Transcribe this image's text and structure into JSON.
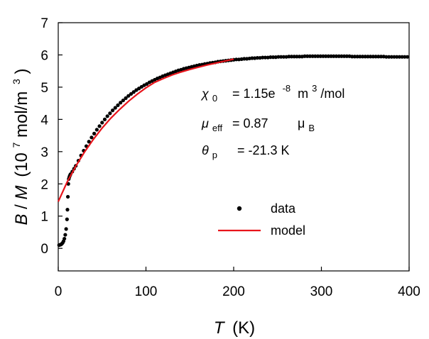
{
  "chart_data": {
    "type": "scatter",
    "title": "",
    "xlabel_symbol": "T",
    "xlabel_unit": "(K)",
    "ylabel_symbol_1": "B",
    "ylabel_slash": "/",
    "ylabel_symbol_2": "M",
    "ylabel_unit_open": "(10",
    "ylabel_unit_exp": "7",
    "ylabel_unit_mid": "mol/m",
    "ylabel_unit_exp2": "3",
    "ylabel_unit_close": ")",
    "xlim": [
      0,
      400
    ],
    "ylim": [
      -0.7,
      7
    ],
    "xticks": [
      0,
      100,
      200,
      300,
      400
    ],
    "yticks": [
      0,
      1,
      2,
      3,
      4,
      5,
      6,
      7
    ],
    "grid": false,
    "legend_position": "lower-right",
    "series": [
      {
        "name": "data",
        "style": "markers",
        "color": "#000000",
        "x": [
          1,
          2,
          3,
          4,
          5,
          6,
          7,
          8,
          9,
          10,
          10.5,
          11,
          11.5,
          12,
          12.5,
          13,
          13.5,
          14,
          16,
          18,
          20,
          23,
          26,
          29,
          32,
          35,
          38,
          41,
          44,
          47,
          50,
          53,
          56,
          59,
          62,
          65,
          68,
          71,
          74,
          77,
          80,
          83,
          86,
          89,
          92,
          95,
          98,
          101,
          104,
          107,
          110,
          113,
          116,
          119,
          122,
          125,
          128,
          131,
          134,
          137,
          140,
          143,
          146,
          149,
          152,
          155,
          158,
          161,
          164,
          167,
          170,
          173,
          176,
          179,
          182,
          185,
          188,
          191,
          194,
          197,
          200,
          203,
          206,
          209,
          212,
          215,
          218,
          221,
          224,
          227,
          230,
          233,
          236,
          239,
          242,
          245,
          248,
          251,
          254,
          257,
          260,
          263,
          266,
          269,
          272,
          275,
          278,
          281,
          284,
          287,
          290,
          293,
          296,
          299,
          302,
          305,
          308,
          311,
          314,
          317,
          320,
          323,
          326,
          329,
          332,
          335,
          338,
          341,
          344,
          347,
          350,
          353,
          356,
          359,
          362,
          365,
          368,
          371,
          374,
          377,
          380,
          383,
          386,
          389,
          392,
          395,
          398
        ],
        "y": [
          0.1,
          0.11,
          0.12,
          0.14,
          0.17,
          0.22,
          0.3,
          0.42,
          0.6,
          0.9,
          1.2,
          1.6,
          2.0,
          2.15,
          2.2,
          2.24,
          2.27,
          2.3,
          2.38,
          2.47,
          2.56,
          2.72,
          2.88,
          3.03,
          3.17,
          3.31,
          3.44,
          3.56,
          3.68,
          3.79,
          3.9,
          4.0,
          4.1,
          4.19,
          4.28,
          4.36,
          4.44,
          4.52,
          4.59,
          4.66,
          4.73,
          4.79,
          4.85,
          4.91,
          4.96,
          5.01,
          5.06,
          5.1,
          5.15,
          5.19,
          5.23,
          5.27,
          5.3,
          5.34,
          5.37,
          5.4,
          5.43,
          5.46,
          5.49,
          5.52,
          5.54,
          5.57,
          5.59,
          5.61,
          5.63,
          5.65,
          5.67,
          5.69,
          5.7,
          5.72,
          5.73,
          5.75,
          5.76,
          5.77,
          5.79,
          5.8,
          5.81,
          5.82,
          5.83,
          5.84,
          5.85,
          5.86,
          5.86,
          5.87,
          5.88,
          5.88,
          5.89,
          5.9,
          5.9,
          5.91,
          5.91,
          5.92,
          5.92,
          5.92,
          5.93,
          5.93,
          5.93,
          5.94,
          5.94,
          5.94,
          5.94,
          5.95,
          5.95,
          5.95,
          5.95,
          5.95,
          5.95,
          5.96,
          5.96,
          5.96,
          5.96,
          5.96,
          5.96,
          5.96,
          5.96,
          5.96,
          5.96,
          5.96,
          5.96,
          5.96,
          5.96,
          5.96,
          5.96,
          5.96,
          5.96,
          5.95,
          5.95,
          5.95,
          5.95,
          5.95,
          5.95,
          5.95,
          5.95,
          5.95,
          5.95,
          5.95,
          5.95,
          5.95,
          5.94,
          5.94,
          5.94,
          5.94,
          5.94,
          5.94,
          5.94,
          5.94,
          5.94
        ]
      },
      {
        "name": "model",
        "style": "line",
        "color": "#e8141b",
        "x": [
          0,
          10,
          20,
          30,
          40,
          50,
          60,
          70,
          80,
          90,
          100,
          110,
          120,
          130,
          140,
          150,
          160,
          170,
          180,
          190,
          200
        ],
        "y": [
          1.45,
          2.05,
          2.55,
          2.99,
          3.38,
          3.73,
          4.04,
          4.31,
          4.56,
          4.78,
          4.98,
          5.15,
          5.27,
          5.38,
          5.47,
          5.55,
          5.62,
          5.69,
          5.75,
          5.81,
          5.87
        ]
      }
    ],
    "annotations": {
      "chi_symbol": "χ",
      "chi_sub": "0",
      "chi_value": "= 1.15e",
      "chi_exp": "-8",
      "chi_unit": "m",
      "chi_unit_exp": "3",
      "chi_unit_tail": "/mol",
      "mu_symbol": "μ",
      "mu_sub": "eff",
      "mu_value": "= 0.87",
      "mu_unit": "μ",
      "mu_unit_sub": "B",
      "theta_symbol": "θ",
      "theta_sub": "p",
      "theta_value": "= -21.3 K"
    }
  }
}
